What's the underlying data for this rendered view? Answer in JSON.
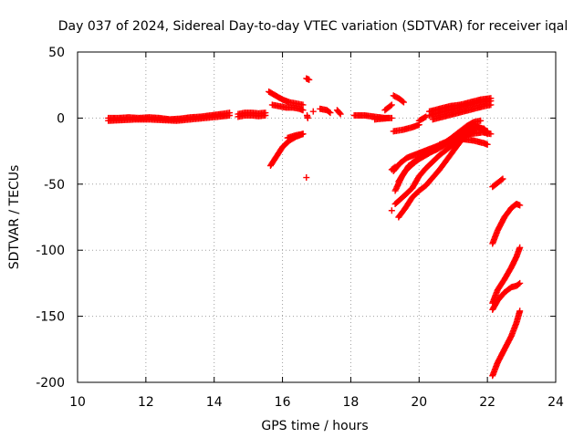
{
  "chart_data": {
    "type": "scatter",
    "title": "Day 037 of 2024, Sidereal Day-to-day VTEC variation (SDTVAR) for receiver iqal",
    "xlabel": "GPS time / hours",
    "ylabel": "SDTVAR / TECUs",
    "xlim": [
      10,
      24
    ],
    "ylim": [
      -200,
      50
    ],
    "xticks": [
      10,
      12,
      14,
      16,
      18,
      20,
      22,
      24
    ],
    "yticks": [
      50,
      0,
      -50,
      -100,
      -150,
      -200
    ],
    "xtick_labels": [
      "10",
      "12",
      "14",
      "16",
      "18",
      "20",
      "22",
      "24"
    ],
    "ytick_labels": [
      "50",
      "0",
      "-50",
      "-100",
      "-150",
      "-200"
    ],
    "grid": true,
    "marker": "+",
    "color": "#ff0000",
    "series": [
      {
        "x": [
          10.9,
          11.2,
          11.5,
          11.8,
          12.1,
          12.4,
          12.7,
          13.0,
          13.3,
          13.6,
          13.9,
          14.2,
          14.45
        ],
        "y": [
          0,
          0,
          0.5,
          0,
          0.5,
          0,
          -1,
          -0.5,
          0.5,
          1,
          2,
          3,
          4
        ]
      },
      {
        "x": [
          10.9,
          11.3,
          11.7,
          12.1,
          12.5,
          12.9,
          13.3,
          13.7,
          14.1,
          14.45
        ],
        "y": [
          -2,
          -1.5,
          -1,
          -1,
          -1.5,
          -2,
          -1,
          0,
          1,
          2
        ]
      },
      {
        "x": [
          14.7,
          14.9,
          15.1,
          15.3,
          15.5
        ],
        "y": [
          3,
          4,
          4,
          3.5,
          4
        ]
      },
      {
        "x": [
          14.7,
          14.9,
          15.1,
          15.3,
          15.5
        ],
        "y": [
          1,
          2,
          2,
          1.5,
          2
        ]
      },
      {
        "x": [
          15.6,
          15.8,
          16.0,
          16.2,
          16.4,
          16.6
        ],
        "y": [
          20,
          17,
          14,
          12,
          11,
          10
        ]
      },
      {
        "x": [
          15.7,
          15.9,
          16.1,
          16.3,
          16.5,
          16.6
        ],
        "y": [
          10,
          9,
          8,
          8,
          7,
          6
        ]
      },
      {
        "x": [
          16.7,
          16.78
        ],
        "y": [
          30,
          29
        ]
      },
      {
        "x": [
          16.72,
          16.74
        ],
        "y": [
          2,
          0
        ]
      },
      {
        "x": [
          16.9
        ],
        "y": [
          5
        ]
      },
      {
        "x": [
          17.1,
          17.3,
          17.4
        ],
        "y": [
          7,
          6,
          4
        ]
      },
      {
        "x": [
          17.6,
          17.7
        ],
        "y": [
          6,
          3
        ]
      },
      {
        "x": [
          15.65,
          15.8,
          16.0,
          16.2,
          16.4,
          16.6
        ],
        "y": [
          -36,
          -30,
          -22,
          -17,
          -14,
          -12
        ]
      },
      {
        "x": [
          16.15,
          16.4,
          16.6
        ],
        "y": [
          -15,
          -13,
          -12
        ]
      },
      {
        "x": [
          16.7
        ],
        "y": [
          -45
        ]
      },
      {
        "x": [
          18.1,
          18.4,
          18.7,
          19.0,
          19.2
        ],
        "y": [
          2,
          2,
          1,
          0,
          0
        ]
      },
      {
        "x": [
          18.7,
          18.9,
          19.1
        ],
        "y": [
          -1,
          -0.5,
          0
        ]
      },
      {
        "x": [
          19.0,
          19.1,
          19.2
        ],
        "y": [
          6,
          8,
          10
        ]
      },
      {
        "x": [
          19.25,
          19.4,
          19.55
        ],
        "y": [
          17,
          15,
          12
        ]
      },
      {
        "x": [
          19.25,
          19.5,
          19.8,
          20.0
        ],
        "y": [
          -10,
          -9,
          -7,
          -5
        ]
      },
      {
        "x": [
          20.0,
          20.2
        ],
        "y": [
          -2,
          1
        ]
      },
      {
        "x": [
          20.3,
          20.6,
          20.9,
          21.2,
          21.5,
          21.8,
          22.1
        ],
        "y": [
          2,
          4,
          6,
          8,
          10,
          12,
          13
        ]
      },
      {
        "x": [
          20.3,
          20.6,
          20.9,
          21.2,
          21.5,
          21.8,
          22.1
        ],
        "y": [
          5,
          7,
          9,
          10,
          12,
          14,
          15
        ]
      },
      {
        "x": [
          20.4,
          20.7,
          21.0,
          21.3,
          21.6,
          21.9,
          22.1
        ],
        "y": [
          -1,
          1,
          3,
          5,
          7,
          9,
          10
        ]
      },
      {
        "x": [
          21.9,
          22.1
        ],
        "y": [
          -11,
          -12
        ]
      },
      {
        "x": [
          19.25,
          19.45,
          19.65,
          19.85,
          20.05,
          20.25,
          20.45,
          20.65,
          20.85,
          21.05,
          21.25,
          21.45,
          21.65,
          21.85,
          22.0
        ],
        "y": [
          -40,
          -34,
          -30,
          -28,
          -26,
          -24,
          -22,
          -20,
          -17,
          -14,
          -11,
          -8,
          -6,
          -8,
          -10
        ]
      },
      {
        "x": [
          19.3,
          19.5,
          19.7,
          19.9,
          20.1,
          20.3,
          20.5,
          20.7,
          20.9,
          21.1,
          21.3,
          21.5,
          21.7,
          21.9,
          22.0
        ],
        "y": [
          -55,
          -44,
          -36,
          -32,
          -29,
          -26,
          -24,
          -21,
          -18,
          -15,
          -12,
          -9,
          -7,
          -8,
          -12
        ]
      },
      {
        "x": [
          19.4,
          19.6,
          19.8,
          20.0,
          20.2,
          20.4,
          20.6,
          20.8,
          21.0,
          21.2,
          21.4,
          21.6,
          21.8
        ],
        "y": [
          -48,
          -40,
          -35,
          -31,
          -28,
          -25,
          -22,
          -18,
          -14,
          -10,
          -6,
          -3,
          -2
        ]
      },
      {
        "x": [
          19.3,
          19.6,
          19.8,
          20.0,
          20.2,
          20.4,
          20.6,
          20.8,
          21.0,
          21.2,
          21.4
        ],
        "y": [
          -65,
          -58,
          -53,
          -44,
          -38,
          -33,
          -28,
          -24,
          -20,
          -17,
          -14
        ]
      },
      {
        "x": [
          20.6,
          20.9,
          21.2,
          21.5,
          21.8,
          22.0
        ],
        "y": [
          -20,
          -17,
          -14,
          -12,
          -11,
          -10
        ]
      },
      {
        "x": [
          21.3,
          21.6,
          21.9,
          22.0
        ],
        "y": [
          -16,
          -17,
          -19,
          -20
        ]
      },
      {
        "x": [
          19.2,
          19.3
        ],
        "y": [
          -39,
          -37
        ]
      },
      {
        "x": [
          19.4,
          19.6,
          19.8,
          20.0,
          20.2,
          20.4,
          20.6,
          20.8,
          21.0,
          21.2,
          21.4,
          21.6
        ],
        "y": [
          -75,
          -68,
          -60,
          -55,
          -51,
          -45,
          -39,
          -32,
          -25,
          -18,
          -13,
          -10
        ]
      },
      {
        "x": [
          19.2
        ],
        "y": [
          -70
        ]
      },
      {
        "x": [
          22.15,
          22.3,
          22.45
        ],
        "y": [
          -52,
          -49,
          -46
        ]
      },
      {
        "x": [
          22.15,
          22.3,
          22.5,
          22.7,
          22.85,
          22.95
        ],
        "y": [
          -95,
          -85,
          -75,
          -68,
          -65,
          -66
        ]
      },
      {
        "x": [
          22.15,
          22.3,
          22.5,
          22.7,
          22.85,
          22.95
        ],
        "y": [
          -145,
          -138,
          -132,
          -128,
          -127,
          -125
        ]
      },
      {
        "x": [
          22.15,
          22.3,
          22.5,
          22.7,
          22.85,
          22.95
        ],
        "y": [
          -140,
          -130,
          -122,
          -113,
          -105,
          -98
        ]
      },
      {
        "x": [
          22.15,
          22.3,
          22.5,
          22.7,
          22.85,
          22.95
        ],
        "y": [
          -195,
          -185,
          -175,
          -165,
          -155,
          -146
        ]
      }
    ]
  }
}
